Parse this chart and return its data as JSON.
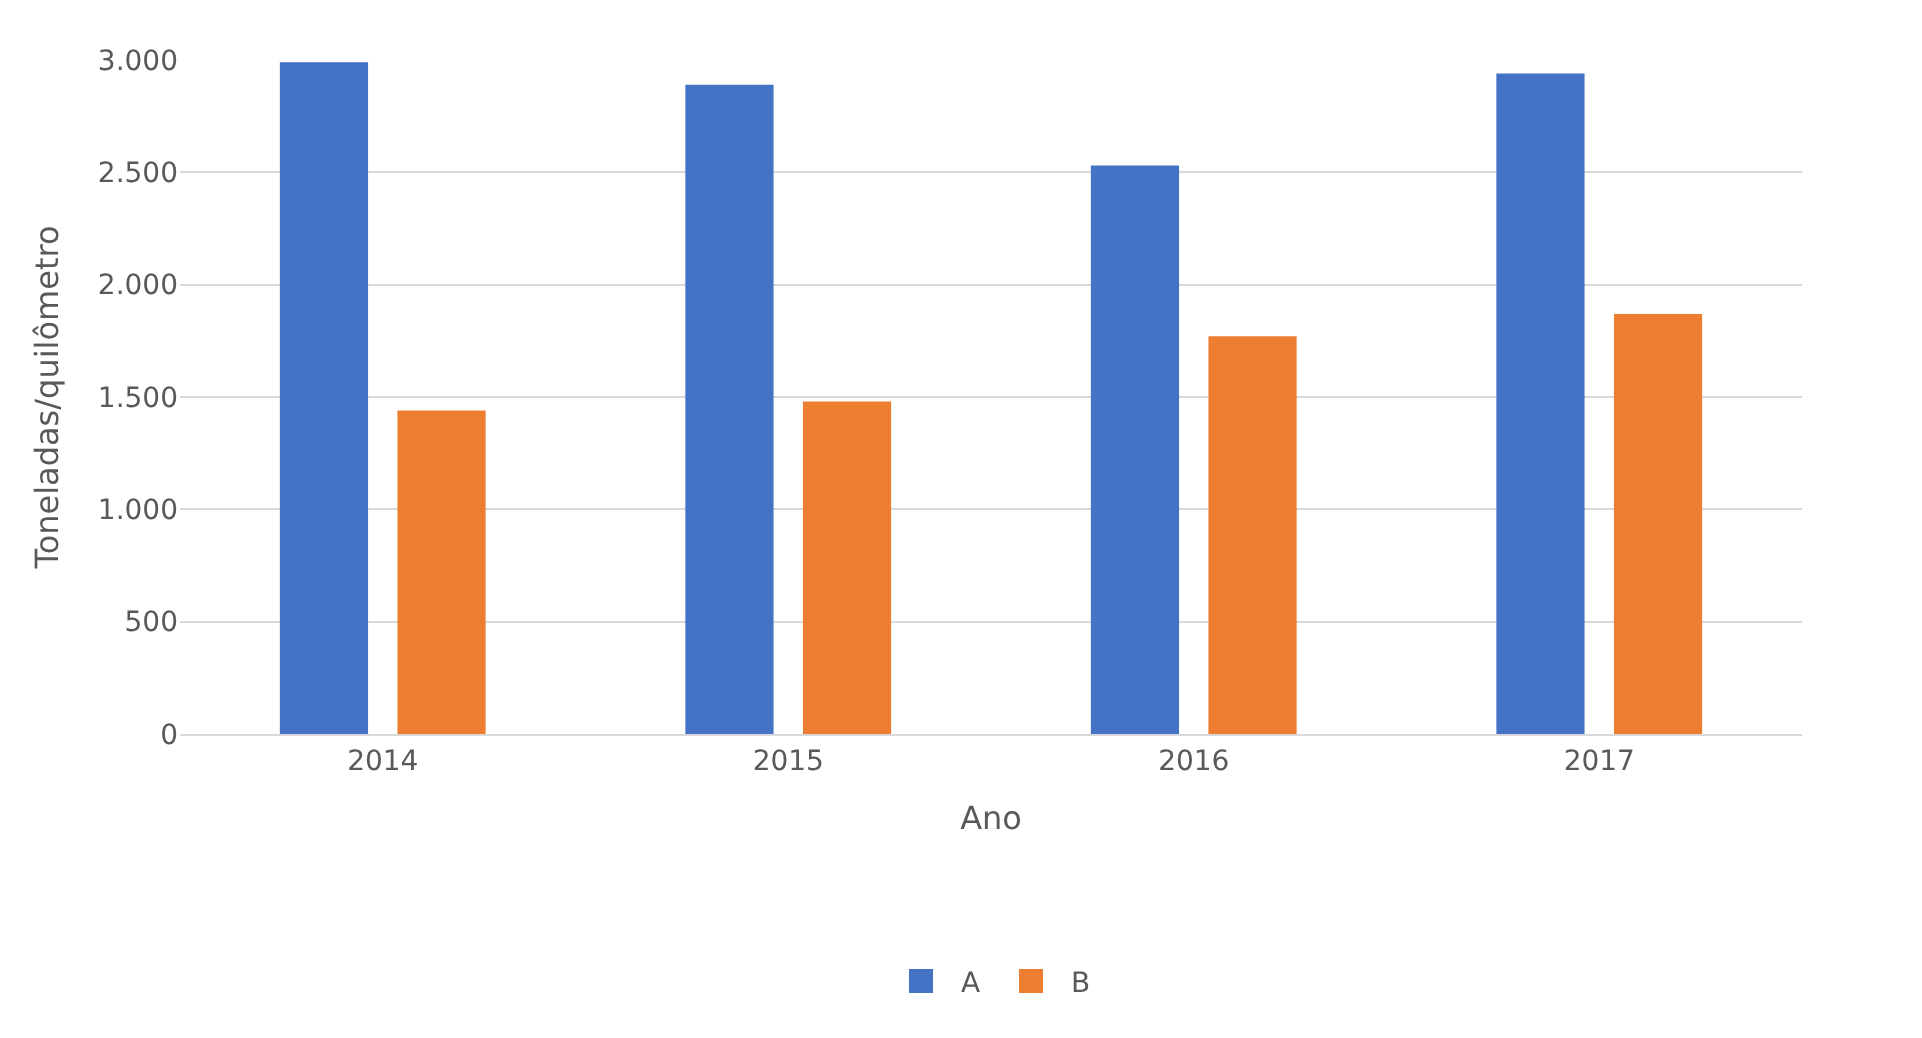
{
  "chart_data": {
    "type": "bar",
    "xlabel": "Ano",
    "ylabel": "Toneladas/quilômetro",
    "categories": [
      "2014",
      "2015",
      "2016",
      "2017"
    ],
    "series": [
      {
        "name": "A",
        "color": "#4472c4",
        "values": [
          2990,
          2890,
          2530,
          2940
        ]
      },
      {
        "name": "B",
        "color": "#ed7d31",
        "values": [
          1440,
          1480,
          1770,
          1870
        ]
      }
    ],
    "ylim": [
      0,
      3000
    ],
    "yticks": [
      {
        "value": 0,
        "label": "0"
      },
      {
        "value": 500,
        "label": "500"
      },
      {
        "value": 1000,
        "label": "1.000"
      },
      {
        "value": 1500,
        "label": "1.500"
      },
      {
        "value": 2000,
        "label": "2.000"
      },
      {
        "value": 2500,
        "label": "2.500"
      },
      {
        "value": 3000,
        "label": "3.000"
      }
    ],
    "grid": "y",
    "legend": "bottom"
  }
}
